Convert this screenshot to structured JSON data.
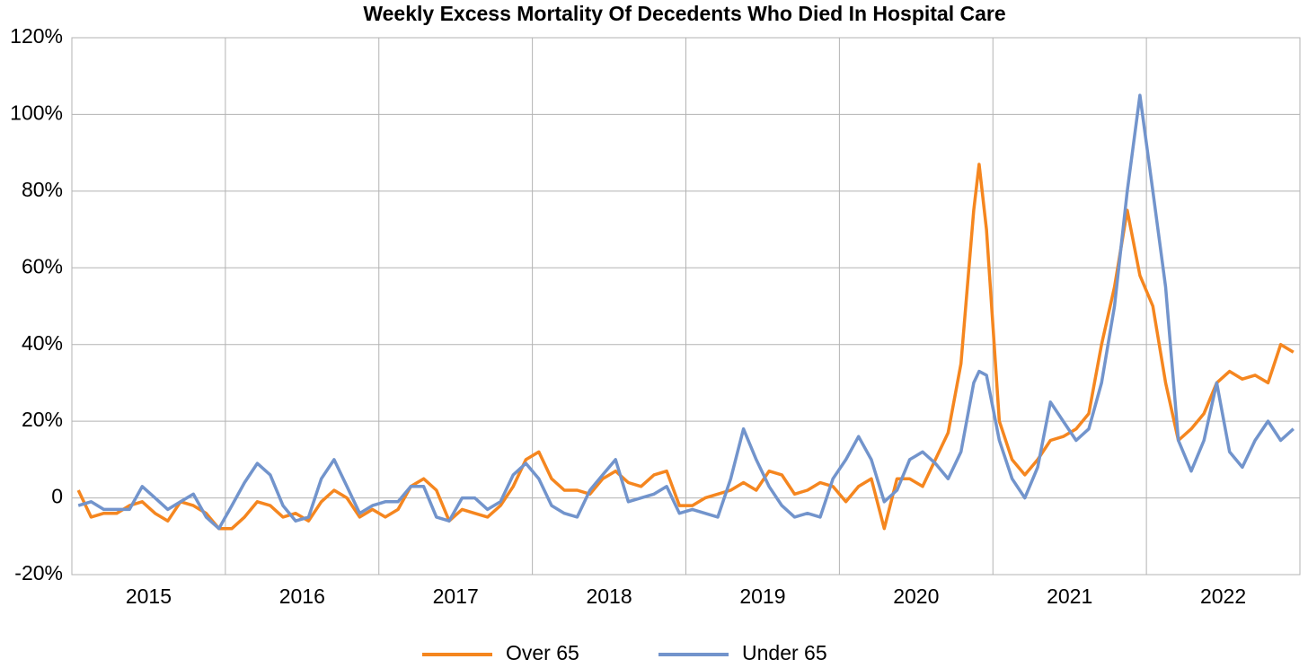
{
  "chart_data": {
    "type": "line",
    "title": "Weekly Excess Mortality Of Decedents Who Died In Hospital Care",
    "x": [
      2015.042,
      2015.125,
      2015.208,
      2015.292,
      2015.375,
      2015.458,
      2015.542,
      2015.625,
      2015.708,
      2015.792,
      2015.875,
      2015.958,
      2016.042,
      2016.125,
      2016.208,
      2016.292,
      2016.375,
      2016.458,
      2016.542,
      2016.625,
      2016.708,
      2016.792,
      2016.875,
      2016.958,
      2017.042,
      2017.125,
      2017.208,
      2017.292,
      2017.375,
      2017.458,
      2017.542,
      2017.625,
      2017.708,
      2017.792,
      2017.875,
      2017.958,
      2018.042,
      2018.125,
      2018.208,
      2018.292,
      2018.375,
      2018.458,
      2018.542,
      2018.625,
      2018.708,
      2018.792,
      2018.875,
      2018.958,
      2019.042,
      2019.125,
      2019.208,
      2019.292,
      2019.375,
      2019.458,
      2019.542,
      2019.625,
      2019.708,
      2019.792,
      2019.875,
      2019.958,
      2020.042,
      2020.125,
      2020.208,
      2020.292,
      2020.375,
      2020.458,
      2020.542,
      2020.625,
      2020.708,
      2020.792,
      2020.875,
      2020.91,
      2020.958,
      2021.042,
      2021.125,
      2021.208,
      2021.292,
      2021.375,
      2021.458,
      2021.542,
      2021.625,
      2021.708,
      2021.792,
      2021.875,
      2021.958,
      2022.042,
      2022.125,
      2022.208,
      2022.292,
      2022.375,
      2022.458,
      2022.542,
      2022.625,
      2022.708,
      2022.792,
      2022.875,
      2022.958
    ],
    "series": [
      {
        "name": "Over 65",
        "color": "#f5861f",
        "values": [
          2,
          -5,
          -4,
          -4,
          -2,
          -1,
          -4,
          -6,
          -1,
          -2,
          -4,
          -8,
          -8,
          -5,
          -1,
          -2,
          -5,
          -4,
          -6,
          -1,
          2,
          0,
          -5,
          -3,
          -5,
          -3,
          3,
          5,
          2,
          -6,
          -3,
          -4,
          -5,
          -2,
          3,
          10,
          12,
          5,
          2,
          2,
          1,
          5,
          7,
          4,
          3,
          6,
          7,
          -2,
          -2,
          0,
          1,
          2,
          4,
          2,
          7,
          6,
          1,
          2,
          4,
          3,
          -1,
          3,
          5,
          -8,
          5,
          5,
          3,
          10,
          17,
          35,
          75,
          87,
          70,
          20,
          10,
          6,
          10,
          15,
          16,
          18,
          22,
          40,
          55,
          75,
          58,
          50,
          30,
          15,
          18,
          22,
          30,
          33,
          31,
          32,
          30,
          40,
          38
        ]
      },
      {
        "name": "Under 65",
        "color": "#7294cc",
        "values": [
          -2,
          -1,
          -3,
          -3,
          -3,
          3,
          0,
          -3,
          -1,
          1,
          -5,
          -8,
          -2,
          4,
          9,
          6,
          -2,
          -6,
          -5,
          5,
          10,
          3,
          -4,
          -2,
          -1,
          -1,
          3,
          3,
          -5,
          -6,
          0,
          0,
          -3,
          -1,
          6,
          9,
          5,
          -2,
          -4,
          -5,
          2,
          6,
          10,
          -1,
          0,
          1,
          3,
          -4,
          -3,
          -4,
          -5,
          5,
          18,
          10,
          3,
          -2,
          -5,
          -4,
          -5,
          5,
          10,
          16,
          10,
          -1,
          2,
          10,
          12,
          9,
          5,
          12,
          30,
          33,
          32,
          15,
          5,
          0,
          8,
          25,
          20,
          15,
          18,
          30,
          50,
          80,
          105,
          80,
          55,
          15,
          7,
          15,
          30,
          12,
          8,
          15,
          20,
          15,
          18
        ]
      }
    ],
    "xlim": [
      2015,
      2023
    ],
    "xticks": [
      {
        "value": 2015.5,
        "label": "2015"
      },
      {
        "value": 2016.5,
        "label": "2016"
      },
      {
        "value": 2017.5,
        "label": "2017"
      },
      {
        "value": 2018.5,
        "label": "2018"
      },
      {
        "value": 2019.5,
        "label": "2019"
      },
      {
        "value": 2020.5,
        "label": "2020"
      },
      {
        "value": 2021.5,
        "label": "2021"
      },
      {
        "value": 2022.5,
        "label": "2022"
      }
    ],
    "xgrid": [
      2016,
      2017,
      2018,
      2019,
      2020,
      2021,
      2022
    ],
    "ylim": [
      -20,
      120
    ],
    "yticks": [
      {
        "value": -20,
        "label": "-20%"
      },
      0,
      {
        "value": 20,
        "label": "20%"
      },
      {
        "value": 40,
        "label": "40%"
      },
      {
        "value": 60,
        "label": "60%"
      },
      {
        "value": 80,
        "label": "80%"
      },
      {
        "value": 100,
        "label": "100%"
      },
      {
        "value": 120,
        "label": "120%"
      }
    ],
    "grid": true,
    "legend": "bottom"
  }
}
